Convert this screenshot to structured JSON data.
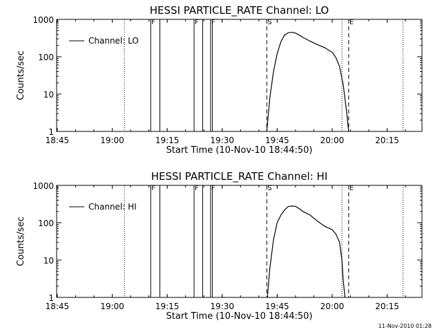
{
  "footer_timestamp": "11-Nov-2010 01:28",
  "chart_data": [
    {
      "type": "line",
      "title": "HESSI PARTICLE_RATE Channel: LO",
      "xlabel": "Start Time (10-Nov-10 18:44:50)",
      "ylabel": "Counts/sec",
      "yscale": "log",
      "ylim": [
        1,
        1000
      ],
      "xlim": [
        "18:44:50",
        "20:24:30"
      ],
      "x_ticks": [
        "18:45",
        "19:00",
        "19:15",
        "19:30",
        "19:45",
        "20:00",
        "20:15"
      ],
      "y_ticks": [
        "1",
        "10",
        "100",
        "1000"
      ],
      "legend": {
        "position": "top-left",
        "entries": [
          "Channel: LO"
        ]
      },
      "series": [
        {
          "name": "Channel: LO",
          "x": [
            "19:42:10",
            "19:43:00",
            "19:44:00",
            "19:45:00",
            "19:46:00",
            "19:47:00",
            "19:48:00",
            "19:49:00",
            "19:50:00",
            "19:51:00",
            "19:52:00",
            "19:54:00",
            "19:56:00",
            "19:58:00",
            "20:00:00",
            "20:01:00",
            "20:02:00",
            "20:03:00",
            "20:04:00",
            "20:04:30"
          ],
          "values": [
            1,
            8,
            40,
            120,
            250,
            380,
            440,
            450,
            430,
            380,
            330,
            260,
            210,
            175,
            130,
            95,
            55,
            18,
            3,
            1
          ]
        }
      ],
      "markers": [
        {
          "label": "F",
          "time": "19:10:30",
          "style": "solid"
        },
        {
          "label": "",
          "time": "19:13:00",
          "style": "solid"
        },
        {
          "label": "F",
          "time": "19:22:20",
          "style": "solid"
        },
        {
          "label": "",
          "time": "19:24:40",
          "style": "solid"
        },
        {
          "label": "F",
          "time": "19:26:50",
          "style": "solid"
        },
        {
          "label": "",
          "time": "19:27:20",
          "style": "solid"
        },
        {
          "label": "S",
          "time": "19:42:10",
          "style": "dashed"
        },
        {
          "label": "E",
          "time": "20:04:30",
          "style": "dashed"
        }
      ],
      "boundaries": [
        "19:03:20",
        "20:02:40",
        "20:19:20"
      ]
    },
    {
      "type": "line",
      "title": "HESSI PARTICLE_RATE Channel: HI",
      "xlabel": "Start Time (10-Nov-10 18:44:50)",
      "ylabel": "Counts/sec",
      "yscale": "log",
      "ylim": [
        1,
        1000
      ],
      "xlim": [
        "18:44:50",
        "20:24:30"
      ],
      "x_ticks": [
        "18:45",
        "19:00",
        "19:15",
        "19:30",
        "19:45",
        "20:00",
        "20:15"
      ],
      "y_ticks": [
        "1",
        "10",
        "100",
        "1000"
      ],
      "legend": {
        "position": "top-left",
        "entries": [
          "Channel: HI"
        ]
      },
      "series": [
        {
          "name": "Channel: HI",
          "x": [
            "19:42:20",
            "19:43:00",
            "19:44:00",
            "19:45:00",
            "19:46:00",
            "19:47:00",
            "19:48:00",
            "19:49:00",
            "19:50:00",
            "19:51:00",
            "19:52:00",
            "19:54:00",
            "19:56:00",
            "19:58:00",
            "20:00:00",
            "20:01:00",
            "20:02:00",
            "20:02:40",
            "20:03:00",
            "20:03:30"
          ],
          "values": [
            1,
            6,
            35,
            100,
            160,
            220,
            270,
            280,
            275,
            240,
            200,
            160,
            110,
            80,
            65,
            50,
            30,
            10,
            3,
            1
          ]
        }
      ],
      "markers": [
        {
          "label": "F",
          "time": "19:10:30",
          "style": "solid"
        },
        {
          "label": "",
          "time": "19:13:00",
          "style": "solid"
        },
        {
          "label": "F",
          "time": "19:22:20",
          "style": "solid"
        },
        {
          "label": "",
          "time": "19:24:40",
          "style": "solid"
        },
        {
          "label": "F",
          "time": "19:26:50",
          "style": "solid"
        },
        {
          "label": "",
          "time": "19:27:20",
          "style": "solid"
        },
        {
          "label": "S",
          "time": "19:42:10",
          "style": "dashed"
        },
        {
          "label": "E",
          "time": "20:04:30",
          "style": "dashed"
        }
      ],
      "boundaries": [
        "19:03:20",
        "20:02:40",
        "20:19:20"
      ]
    }
  ]
}
